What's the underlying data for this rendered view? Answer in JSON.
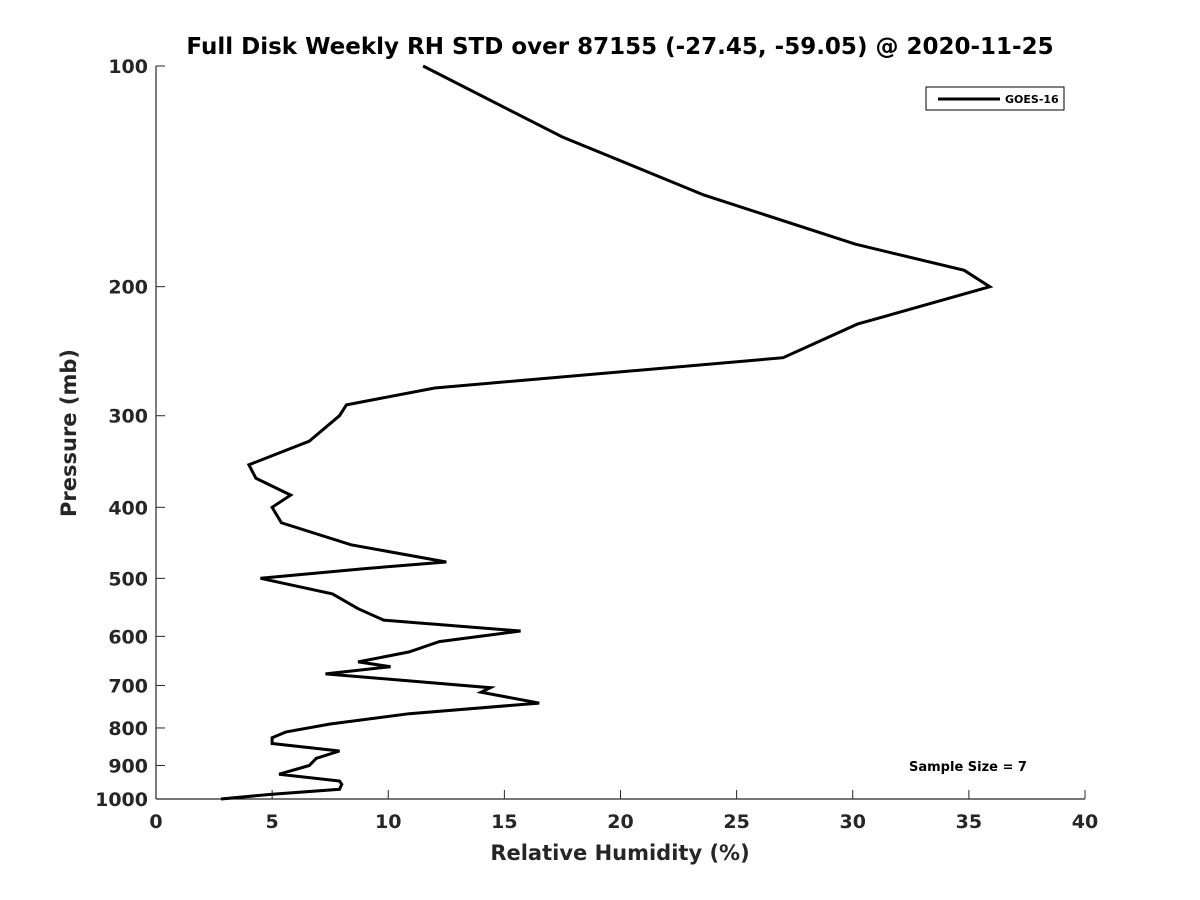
{
  "chart_data": {
    "type": "line",
    "title": "Full Disk Weekly RH STD over 87155 (-27.45, -59.05) @ 2020-11-25",
    "xlabel": "Relative Humidity (%)",
    "ylabel": "Pressure (mb)",
    "xlim": [
      0,
      40
    ],
    "ylim": [
      100,
      1000
    ],
    "y_scale": "log",
    "y_reversed": true,
    "x_ticks": [
      0,
      5,
      10,
      15,
      20,
      25,
      30,
      35,
      40
    ],
    "x_tick_labels": [
      "0",
      "5",
      "10",
      "15",
      "20",
      "25",
      "30",
      "35",
      "40"
    ],
    "y_ticks": [
      100,
      200,
      300,
      400,
      500,
      600,
      700,
      800,
      900,
      1000
    ],
    "y_tick_labels": [
      "100",
      "200",
      "300",
      "400",
      "500",
      "600",
      "700",
      "800",
      "900",
      "1000"
    ],
    "grid": false,
    "legend_position": "top-right",
    "series": [
      {
        "name": "GOES-16",
        "color": "#000000",
        "points": [
          [
            11.5,
            100
          ],
          [
            17.5,
            125
          ],
          [
            23.6,
            150
          ],
          [
            30.1,
            175
          ],
          [
            34.8,
            190
          ],
          [
            35.9,
            200
          ],
          [
            30.2,
            225
          ],
          [
            27.0,
            250
          ],
          [
            12.0,
            275
          ],
          [
            8.2,
            290
          ],
          [
            7.9,
            300
          ],
          [
            6.6,
            325
          ],
          [
            4.0,
            350
          ],
          [
            4.3,
            365
          ],
          [
            5.8,
            385
          ],
          [
            5.0,
            400
          ],
          [
            5.4,
            420
          ],
          [
            8.4,
            450
          ],
          [
            12.5,
            475
          ],
          [
            9.0,
            485
          ],
          [
            4.5,
            500
          ],
          [
            7.6,
            525
          ],
          [
            8.7,
            550
          ],
          [
            9.8,
            570
          ],
          [
            15.7,
            590
          ],
          [
            12.2,
            610
          ],
          [
            10.9,
            630
          ],
          [
            8.7,
            650
          ],
          [
            10.1,
            660
          ],
          [
            7.3,
            675
          ],
          [
            14.4,
            705
          ],
          [
            14.0,
            715
          ],
          [
            16.5,
            740
          ],
          [
            10.9,
            765
          ],
          [
            7.5,
            790
          ],
          [
            5.6,
            810
          ],
          [
            5.0,
            825
          ],
          [
            5.0,
            840
          ],
          [
            7.9,
            860
          ],
          [
            6.9,
            880
          ],
          [
            6.6,
            900
          ],
          [
            5.3,
            925
          ],
          [
            7.9,
            945
          ],
          [
            8.0,
            955
          ],
          [
            7.9,
            970
          ],
          [
            5.0,
            985
          ],
          [
            2.8,
            1000
          ]
        ]
      }
    ],
    "annotations": [
      "Sample Size = 7"
    ]
  }
}
